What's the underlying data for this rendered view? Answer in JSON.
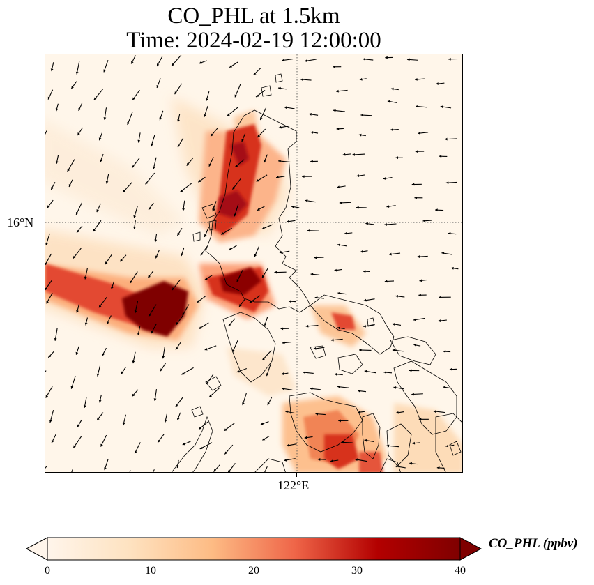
{
  "title": {
    "line1": "CO_PHL at 1.5km",
    "line2": "Time: 2024-02-19 12:00:00"
  },
  "axes": {
    "lat_tick": "16°N",
    "lon_tick": "122°E"
  },
  "colorbar": {
    "label": "CO_PHL (ppbv)",
    "ticks": [
      "0",
      "10",
      "20",
      "30",
      "40"
    ],
    "min": 0,
    "max": 40,
    "extend": "both",
    "colormap": [
      "#fff5eb",
      "#fdd49e",
      "#fc8d59",
      "#d7301f",
      "#b30000",
      "#7f0000"
    ]
  },
  "map": {
    "background_color": "#fff6ea",
    "gridlines": "dotted",
    "features": [
      "coastlines",
      "wind-vectors",
      "concentration-field"
    ]
  }
}
